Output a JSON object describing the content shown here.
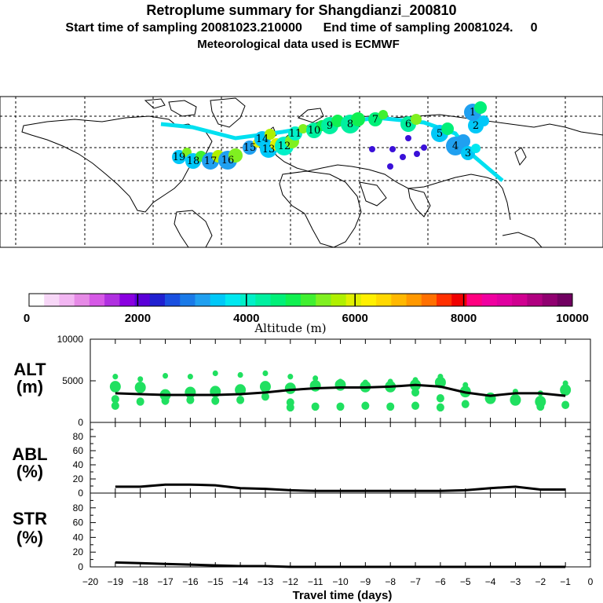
{
  "header": {
    "title": "Retroplume summary for Shangdianzi_200810",
    "subtitle": "Start time of sampling 20081023.210000      End time of sampling 20081024.     0",
    "met": "Meteorological data used is ECMWF"
  },
  "colorbar": {
    "label": "Altitude (m)",
    "ticks": [
      "0",
      "2000",
      "4000",
      "6000",
      "8000",
      "10000"
    ],
    "colors": [
      "#ffffff",
      "#f7d7f7",
      "#f2b6f2",
      "#e68ae6",
      "#d659e6",
      "#b030e0",
      "#8a00e0",
      "#5a00d8",
      "#2020d0",
      "#1a50e0",
      "#1a7ae8",
      "#20a0f0",
      "#00c8f8",
      "#00e8f0",
      "#00f0c8",
      "#00f0a0",
      "#00f078",
      "#10f050",
      "#40f030",
      "#80f020",
      "#b0f000",
      "#e0f000",
      "#fff000",
      "#ffd800",
      "#ffb800",
      "#ff9800",
      "#ff7000",
      "#ff3000",
      "#f00000",
      "#ff0080",
      "#f000a0",
      "#e000a0",
      "#d00090",
      "#b00080",
      "#900070",
      "#700060"
    ]
  },
  "map": {
    "labels": [
      "19",
      "18",
      "17",
      "16",
      "15",
      "14",
      "13",
      "12",
      "11",
      "10",
      "9",
      "8",
      "7",
      "6",
      "5",
      "4",
      "3",
      "2",
      "1"
    ]
  },
  "chart_data": [
    {
      "type": "scatter",
      "panel": "ALT",
      "ylabel_line1": "ALT",
      "ylabel_line2": "(m)",
      "ylim": [
        0,
        10000
      ],
      "yticks": [
        "10000",
        "5000",
        "0"
      ],
      "x": [
        -19,
        -18,
        -17,
        -16,
        -15,
        -14,
        -13,
        -12,
        -11,
        -10,
        -9,
        -8,
        -7,
        -6,
        -5,
        -4,
        -3,
        -2,
        -1
      ],
      "mean_altitude_m": [
        3500,
        3400,
        3300,
        3300,
        3300,
        3400,
        3600,
        3900,
        4100,
        4200,
        4200,
        4300,
        4500,
        4300,
        3600,
        3200,
        3500,
        3500,
        3200
      ],
      "clusters_altitude_m": [
        [
          5500,
          4300,
          2800,
          2000
        ],
        [
          5200,
          4200,
          2500
        ],
        [
          5600,
          3300,
          2600
        ],
        [
          5500,
          3600,
          2700
        ],
        [
          5900,
          3700,
          2600
        ],
        [
          5700,
          3900,
          2700
        ],
        [
          5900,
          4300,
          3100
        ],
        [
          5500,
          4100,
          2400,
          1800
        ],
        [
          5300,
          4400,
          1900
        ],
        [
          4900,
          4500,
          1900
        ],
        [
          4800,
          4300,
          2000
        ],
        [
          4900,
          4300,
          1900
        ],
        [
          5100,
          4500,
          3600,
          2000
        ],
        [
          5500,
          4800,
          2900,
          1800
        ],
        [
          4500,
          3700,
          2200
        ],
        [
          3100,
          2900
        ],
        [
          3700,
          2700
        ],
        [
          3500,
          2500,
          1900
        ],
        [
          4700,
          3900,
          2100
        ]
      ],
      "dot_color": "#20e060"
    },
    {
      "type": "line",
      "panel": "ABL",
      "ylabel_line1": "ABL",
      "ylabel_line2": "(%)",
      "ylim": [
        0,
        100
      ],
      "yticks": [
        "80",
        "60",
        "40",
        "20",
        "0"
      ],
      "x": [
        -19,
        -18,
        -17,
        -16,
        -15,
        -14,
        -13,
        -12,
        -11,
        -10,
        -9,
        -8,
        -7,
        -6,
        -5,
        -4,
        -3,
        -2,
        -1
      ],
      "values": [
        9,
        9,
        12,
        12,
        11,
        7,
        6,
        4,
        3,
        3,
        3,
        3,
        3,
        3,
        4,
        7,
        9,
        5,
        5
      ]
    },
    {
      "type": "line",
      "panel": "STR",
      "ylabel_line1": "STR",
      "ylabel_line2": "(%)",
      "ylim": [
        0,
        100
      ],
      "yticks": [
        "80",
        "60",
        "40",
        "20",
        "0"
      ],
      "x": [
        -19,
        -18,
        -17,
        -16,
        -15,
        -14,
        -13,
        -12,
        -11,
        -10,
        -9,
        -8,
        -7,
        -6,
        -5,
        -4,
        -3,
        -2,
        -1
      ],
      "values": [
        6,
        5,
        4,
        3,
        2,
        1,
        1,
        0,
        0,
        0,
        0,
        0,
        0,
        0,
        0,
        0,
        0,
        0,
        0
      ]
    }
  ],
  "xaxis": {
    "label": "Travel time (days)",
    "ticks": [
      "−20",
      "−19",
      "−18",
      "−17",
      "−16",
      "−15",
      "−14",
      "−13",
      "−12",
      "−11",
      "−10",
      "−9",
      "−8",
      "−7",
      "−6",
      "−5",
      "−4",
      "−3",
      "−2",
      "−1",
      "0"
    ]
  }
}
